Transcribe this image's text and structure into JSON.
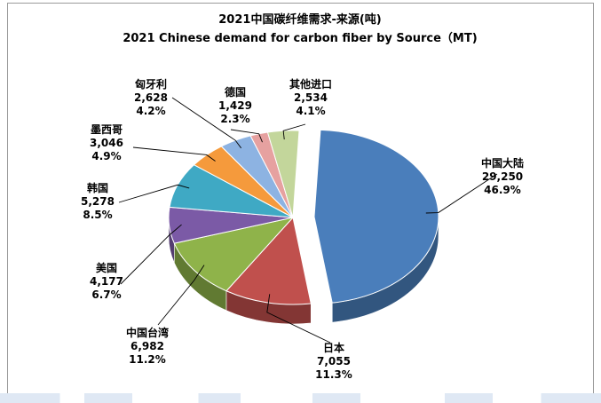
{
  "chart_data": {
    "type": "pie",
    "title": "2021中国碳纤维需求-来源(吨)",
    "subtitle": "2021 Chinese demand for carbon fiber by Source（MT)",
    "slices": [
      {
        "label": "中国大陆",
        "value": "29,250",
        "percent": "46.9%",
        "amount": 29250,
        "color": "#4a7ebb"
      },
      {
        "label": "日本",
        "value": "7,055",
        "percent": "11.3%",
        "amount": 7055,
        "color": "#c0504d"
      },
      {
        "label": "中国台湾",
        "value": "6,982",
        "percent": "11.2%",
        "amount": 6982,
        "color": "#8fb34a"
      },
      {
        "label": "美国",
        "value": "4,177",
        "percent": "6.7%",
        "amount": 4177,
        "color": "#7b5aa6"
      },
      {
        "label": "韩国",
        "value": "5,278",
        "percent": "8.5%",
        "amount": 5278,
        "color": "#3fa9c4"
      },
      {
        "label": "墨西哥",
        "value": "3,046",
        "percent": "4.9%",
        "amount": 3046,
        "color": "#f59a3c"
      },
      {
        "label": "匈牙利",
        "value": "2,628",
        "percent": "4.2%",
        "amount": 2628,
        "color": "#8db3e2"
      },
      {
        "label": "德国",
        "value": "1,429",
        "percent": "2.3%",
        "amount": 1429,
        "color": "#e6a1a0"
      },
      {
        "label": "其他进口",
        "value": "2,534",
        "percent": "4.1%",
        "amount": 2534,
        "color": "#c3d69b"
      }
    ]
  }
}
